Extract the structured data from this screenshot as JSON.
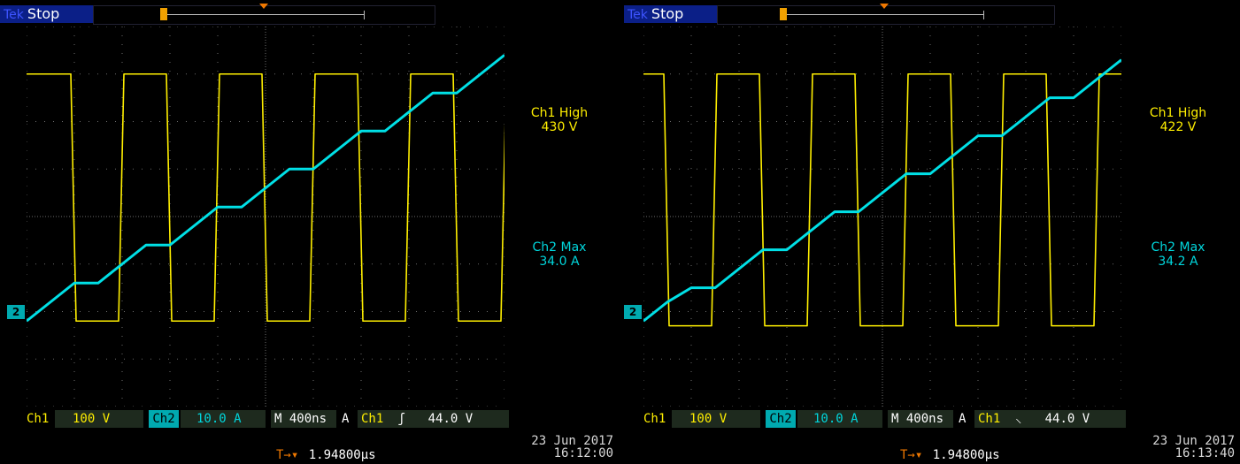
{
  "brand": "Tek",
  "acq_state": "Stop",
  "trigger_marker": "T",
  "ch2_marker": "2",
  "colors": {
    "ch1": "#ffef00",
    "ch2": "#00e0e6",
    "grid": "#6b6b6b",
    "panel": "#1e2a1e"
  },
  "screens": [
    {
      "ch1_meas_label": "Ch1 High",
      "ch1_meas_value": "430 V",
      "ch2_meas_label": "Ch2 Max",
      "ch2_meas_value": "34.0 A",
      "ch1_name": "Ch1",
      "ch1_scale": "100 V",
      "ch2_name": "Ch2",
      "ch2_scale": "10.0 A",
      "timebase": "M 400ns",
      "trig_mode": "A",
      "trig_source": "Ch1",
      "trig_slope": "ʃ",
      "trig_level": "44.0 V",
      "trig_pos_value": "1.94800µs",
      "date": "23 Jun  2017",
      "time": "16:12:00"
    },
    {
      "ch1_meas_label": "Ch1 High",
      "ch1_meas_value": "422 V",
      "ch2_meas_label": "Ch2 Max",
      "ch2_meas_value": "34.2 A",
      "ch1_name": "Ch1",
      "ch1_scale": "100 V",
      "ch2_name": "Ch2",
      "ch2_scale": "10.0 A",
      "timebase": "M 400ns",
      "trig_mode": "A",
      "trig_source": "Ch1",
      "trig_slope": "⸜",
      "trig_level": "44.0 V",
      "trig_pos_value": "1.94800µs",
      "date": "23 Jun  2017",
      "time": "16:13:40"
    }
  ],
  "chart_data": [
    {
      "type": "line",
      "x": [
        0,
        0.2,
        0.4,
        0.6,
        0.8,
        1.0,
        1.2,
        1.4,
        1.6,
        1.8,
        2.0,
        2.2,
        2.4,
        2.6,
        2.8,
        3.0,
        3.2,
        3.4,
        3.6,
        3.8,
        4.0
      ],
      "xlim": [
        0,
        4.0
      ],
      "ylim": [
        -4,
        4
      ],
      "grid": true,
      "series": [
        {
          "name": "Ch1",
          "values": [
            3.0,
            3.0,
            -2.2,
            -2.2,
            3.0,
            3.0,
            -2.2,
            -2.2,
            3.0,
            3.0,
            -2.2,
            -2.2,
            3.0,
            3.0,
            -2.2,
            -2.2,
            3.0,
            3.0,
            -2.2,
            -2.2,
            3.0
          ]
        },
        {
          "name": "Ch2",
          "values": [
            -2.2,
            -1.8,
            -1.4,
            -1.4,
            -1.0,
            -0.6,
            -0.6,
            -0.2,
            0.2,
            0.2,
            0.6,
            1.0,
            1.0,
            1.4,
            1.8,
            1.8,
            2.2,
            2.6,
            2.6,
            3.0,
            3.4
          ]
        }
      ]
    },
    {
      "type": "line",
      "x": [
        0,
        0.2,
        0.4,
        0.6,
        0.8,
        1.0,
        1.2,
        1.4,
        1.6,
        1.8,
        2.0,
        2.2,
        2.4,
        2.6,
        2.8,
        3.0,
        3.2,
        3.4,
        3.6,
        3.8,
        4.0
      ],
      "xlim": [
        0,
        4.0
      ],
      "ylim": [
        -4,
        4
      ],
      "grid": true,
      "series": [
        {
          "name": "Ch1",
          "values": [
            3.0,
            -2.3,
            -2.3,
            3.0,
            3.0,
            -2.3,
            -2.3,
            3.0,
            3.0,
            -2.3,
            -2.3,
            3.0,
            3.0,
            -2.3,
            -2.3,
            3.0,
            3.0,
            -2.3,
            -2.3,
            3.0,
            3.0
          ]
        },
        {
          "name": "Ch2",
          "values": [
            -2.2,
            -1.8,
            -1.5,
            -1.5,
            -1.1,
            -0.7,
            -0.7,
            -0.3,
            0.1,
            0.1,
            0.5,
            0.9,
            0.9,
            1.3,
            1.7,
            1.7,
            2.1,
            2.5,
            2.5,
            2.9,
            3.3
          ]
        }
      ]
    }
  ]
}
